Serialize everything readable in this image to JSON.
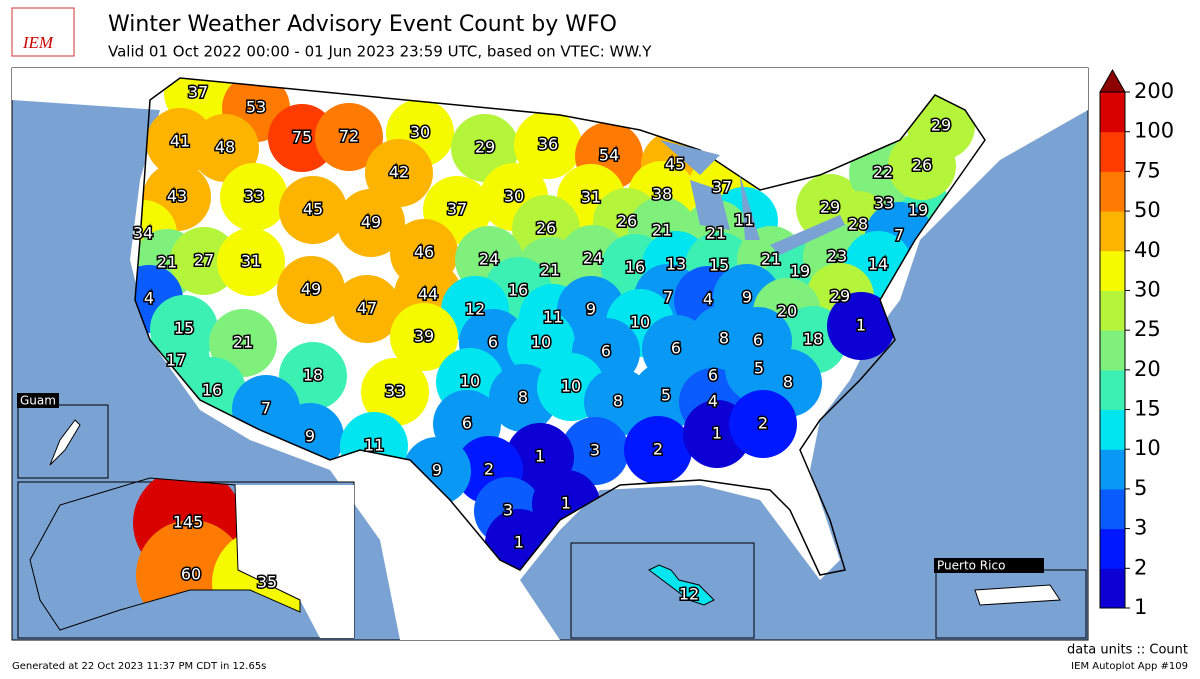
{
  "header": {
    "logo": "IEM",
    "title": "Winter Weather Advisory Event Count by WFO",
    "subtitle": "Valid 01 Oct 2022 00:00 - 01 Jun 2023 23:59 UTC, based on VTEC: WW.Y"
  },
  "map": {
    "labels": [
      37,
      53,
      75,
      72,
      30,
      29,
      36,
      54,
      45,
      41,
      48,
      43,
      33,
      45,
      42,
      37,
      30,
      31,
      38,
      37,
      11,
      29,
      33,
      19,
      22,
      26,
      29,
      28,
      7,
      49,
      46,
      26,
      26,
      21,
      21,
      34,
      21,
      27,
      31,
      24,
      21,
      24,
      16,
      13,
      15,
      21,
      19,
      23,
      14,
      4,
      49,
      47,
      44,
      16,
      29,
      15,
      21,
      12,
      11,
      9,
      7,
      4,
      9,
      20,
      18,
      1,
      39,
      6,
      10,
      10,
      6,
      6,
      8,
      6,
      17,
      18,
      33,
      10,
      8,
      10,
      8,
      5,
      6,
      4,
      5,
      8,
      16,
      7,
      9,
      11,
      6,
      3,
      2,
      1,
      2,
      1,
      2,
      9,
      3,
      1,
      1,
      145,
      60,
      35,
      12
    ],
    "insets": [
      "Guam",
      "Puerto Rico"
    ]
  },
  "colorbar": {
    "ticks": [
      1,
      2,
      3,
      5,
      10,
      15,
      20,
      25,
      30,
      40,
      50,
      75,
      100,
      200
    ],
    "colors": [
      "#0c00d4",
      "#0018ff",
      "#0a5cff",
      "#0a98f5",
      "#00e5f0",
      "#3cf0b4",
      "#80f07c",
      "#b4f53c",
      "#f5fa00",
      "#fcb400",
      "#ff7a00",
      "#ff3c00",
      "#d90000"
    ],
    "over_color": "#8c0000"
  },
  "footer": {
    "units": "data units :: Count",
    "generated": "Generated at 22 Oct 2023 11:37 PM CDT in 12.65s",
    "app": "IEM Autoplot App #109"
  }
}
